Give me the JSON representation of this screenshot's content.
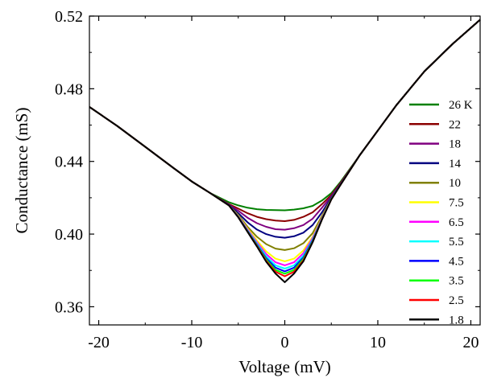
{
  "chart_data": {
    "type": "line",
    "title": "",
    "xlabel": "Voltage (mV)",
    "ylabel": "Conductance (mS)",
    "xlim": [
      -21,
      21
    ],
    "ylim": [
      0.35,
      0.52
    ],
    "xticks": [
      -20,
      -10,
      0,
      10,
      20
    ],
    "xtick_labels": [
      "-20",
      "-10",
      "0",
      "10",
      "20"
    ],
    "yticks": [
      0.36,
      0.4,
      0.44,
      0.48,
      0.52
    ],
    "ytick_labels": [
      "0.36",
      "0.40",
      "0.44",
      "0.48",
      "0.52"
    ],
    "grid": false,
    "legend_position": "right",
    "x": [
      -21,
      -18,
      -15,
      -12,
      -10,
      -8,
      -6,
      -5,
      -4,
      -3,
      -2,
      -1,
      0,
      1,
      2,
      3,
      4,
      5,
      6,
      8,
      10,
      12,
      15,
      18,
      21
    ],
    "series": [
      {
        "name": "26 K",
        "color": "#008000",
        "values": [
          0.47,
          0.4595,
          0.448,
          0.4365,
          0.429,
          0.4225,
          0.4175,
          0.4158,
          0.4145,
          0.4137,
          0.4133,
          0.4132,
          0.4131,
          0.4135,
          0.4142,
          0.4155,
          0.4185,
          0.4225,
          0.4288,
          0.443,
          0.457,
          0.471,
          0.4895,
          0.5045,
          0.518
        ]
      },
      {
        "name": "22",
        "color": "#8b0000",
        "values": [
          0.47,
          0.4595,
          0.448,
          0.4365,
          0.429,
          0.4225,
          0.4165,
          0.414,
          0.4115,
          0.4095,
          0.4082,
          0.4074,
          0.4071,
          0.4078,
          0.4095,
          0.412,
          0.4165,
          0.4215,
          0.4282,
          0.443,
          0.457,
          0.471,
          0.4895,
          0.5045,
          0.518
        ]
      },
      {
        "name": "18",
        "color": "#800080",
        "values": [
          0.47,
          0.4595,
          0.448,
          0.4365,
          0.429,
          0.4225,
          0.4162,
          0.4128,
          0.409,
          0.406,
          0.404,
          0.4027,
          0.4024,
          0.4032,
          0.405,
          0.4085,
          0.4145,
          0.4208,
          0.4278,
          0.443,
          0.457,
          0.471,
          0.4895,
          0.5045,
          0.518
        ]
      },
      {
        "name": "14",
        "color": "#000080",
        "values": [
          0.47,
          0.4595,
          0.448,
          0.4365,
          0.429,
          0.4225,
          0.416,
          0.4115,
          0.4065,
          0.4025,
          0.4,
          0.3985,
          0.398,
          0.3988,
          0.4008,
          0.405,
          0.412,
          0.42,
          0.4275,
          0.443,
          0.457,
          0.471,
          0.4895,
          0.5045,
          0.518
        ]
      },
      {
        "name": "10",
        "color": "#808000",
        "values": [
          0.47,
          0.4595,
          0.448,
          0.4365,
          0.429,
          0.4225,
          0.4158,
          0.4105,
          0.404,
          0.3985,
          0.3945,
          0.392,
          0.3912,
          0.3922,
          0.395,
          0.4005,
          0.41,
          0.4195,
          0.4272,
          0.443,
          0.457,
          0.471,
          0.4895,
          0.5045,
          0.518
        ]
      },
      {
        "name": "7.5",
        "color": "#ffff00",
        "values": [
          0.47,
          0.4595,
          0.448,
          0.4365,
          0.429,
          0.4225,
          0.4158,
          0.41,
          0.403,
          0.3965,
          0.3905,
          0.3865,
          0.385,
          0.3865,
          0.391,
          0.3985,
          0.409,
          0.4193,
          0.4272,
          0.443,
          0.457,
          0.471,
          0.4895,
          0.5045,
          0.518
        ]
      },
      {
        "name": "6.5",
        "color": "#ff00ff",
        "values": [
          0.47,
          0.4595,
          0.448,
          0.4365,
          0.429,
          0.4225,
          0.4158,
          0.4098,
          0.4025,
          0.3955,
          0.389,
          0.3845,
          0.3828,
          0.3845,
          0.3895,
          0.3978,
          0.4088,
          0.4192,
          0.4272,
          0.443,
          0.457,
          0.471,
          0.4895,
          0.5045,
          0.518
        ]
      },
      {
        "name": "5.5",
        "color": "#00ffff",
        "values": [
          0.47,
          0.4595,
          0.448,
          0.4365,
          0.429,
          0.4225,
          0.4158,
          0.4096,
          0.402,
          0.3948,
          0.3878,
          0.3828,
          0.381,
          0.3828,
          0.3882,
          0.397,
          0.4085,
          0.4192,
          0.4272,
          0.443,
          0.457,
          0.471,
          0.4895,
          0.5045,
          0.518
        ]
      },
      {
        "name": "4.5",
        "color": "#0000ff",
        "values": [
          0.47,
          0.4595,
          0.448,
          0.4365,
          0.429,
          0.4225,
          0.4158,
          0.4095,
          0.4017,
          0.3942,
          0.3868,
          0.3815,
          0.3795,
          0.3815,
          0.3872,
          0.3965,
          0.4083,
          0.4191,
          0.4272,
          0.443,
          0.457,
          0.471,
          0.4895,
          0.5045,
          0.518
        ]
      },
      {
        "name": "3.5",
        "color": "#00ff00",
        "values": [
          0.47,
          0.4595,
          0.448,
          0.4365,
          0.429,
          0.4225,
          0.4158,
          0.4094,
          0.4015,
          0.3938,
          0.386,
          0.3803,
          0.3782,
          0.3803,
          0.3864,
          0.396,
          0.4082,
          0.4191,
          0.4272,
          0.443,
          0.457,
          0.471,
          0.4895,
          0.5045,
          0.518
        ]
      },
      {
        "name": "2.5",
        "color": "#ff0000",
        "values": [
          0.47,
          0.4595,
          0.448,
          0.4365,
          0.429,
          0.4225,
          0.4158,
          0.4093,
          0.4013,
          0.3935,
          0.3853,
          0.3793,
          0.3768,
          0.3793,
          0.3856,
          0.3957,
          0.4081,
          0.419,
          0.4272,
          0.443,
          0.457,
          0.471,
          0.4895,
          0.5045,
          0.518
        ]
      },
      {
        "name": "1.8",
        "color": "#000000",
        "values": [
          0.47,
          0.4595,
          0.448,
          0.4365,
          0.429,
          0.4225,
          0.4158,
          0.4092,
          0.4012,
          0.3932,
          0.3848,
          0.3783,
          0.3735,
          0.3783,
          0.385,
          0.3955,
          0.408,
          0.419,
          0.4272,
          0.443,
          0.457,
          0.471,
          0.4895,
          0.5045,
          0.518
        ]
      }
    ]
  }
}
